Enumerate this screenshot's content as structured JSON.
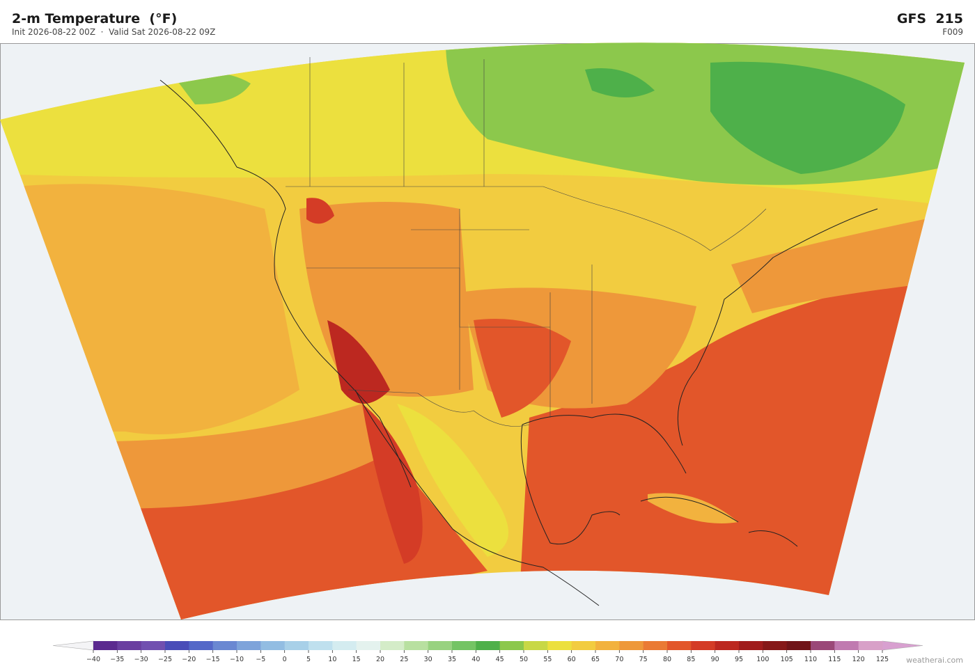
{
  "header": {
    "title": "2-m Temperature  (°F)",
    "subtitle": "Init 2026-08-22 00Z  ·  Valid Sat 2026-08-22 09Z",
    "model": "GFS  215",
    "forecast_hour": "F009"
  },
  "colorbar": {
    "ticks": [
      {
        "value": -40,
        "label": "−40"
      },
      {
        "value": -35,
        "label": "−35"
      },
      {
        "value": -30,
        "label": "−30"
      },
      {
        "value": -25,
        "label": "−25"
      },
      {
        "value": -20,
        "label": "−20"
      },
      {
        "value": -15,
        "label": "−15"
      },
      {
        "value": -10,
        "label": "−10"
      },
      {
        "value": -5,
        "label": "−5"
      },
      0,
      5,
      10,
      15,
      20,
      25,
      30,
      35,
      40,
      45,
      50,
      55,
      60,
      65,
      70,
      75,
      80,
      85,
      90,
      95,
      100,
      105,
      110,
      115,
      120,
      125
    ],
    "colors": [
      "#5b2a8f",
      "#6a3fa0",
      "#7150b0",
      "#4a4db8",
      "#5468c8",
      "#6a88d2",
      "#7ea3da",
      "#92bde2",
      "#a8d0e8",
      "#bfe0ee",
      "#d4ecf0",
      "#e4f2ee",
      "#d4ecc8",
      "#b8e0a0",
      "#98d280",
      "#74c464",
      "#4eb04a",
      "#8cc84c",
      "#c8d846",
      "#ece03e",
      "#f2cc40",
      "#f2b23e",
      "#ee983a",
      "#ea7a34",
      "#e2562a",
      "#d43c26",
      "#bc2820",
      "#a01c1c",
      "#861818",
      "#701418",
      "#9a4878",
      "#c07ab0",
      "#d8a0c8"
    ],
    "under_color": "#f4f4f6",
    "over_color": "#d8a0d0"
  },
  "credit": "weatherai.com"
}
